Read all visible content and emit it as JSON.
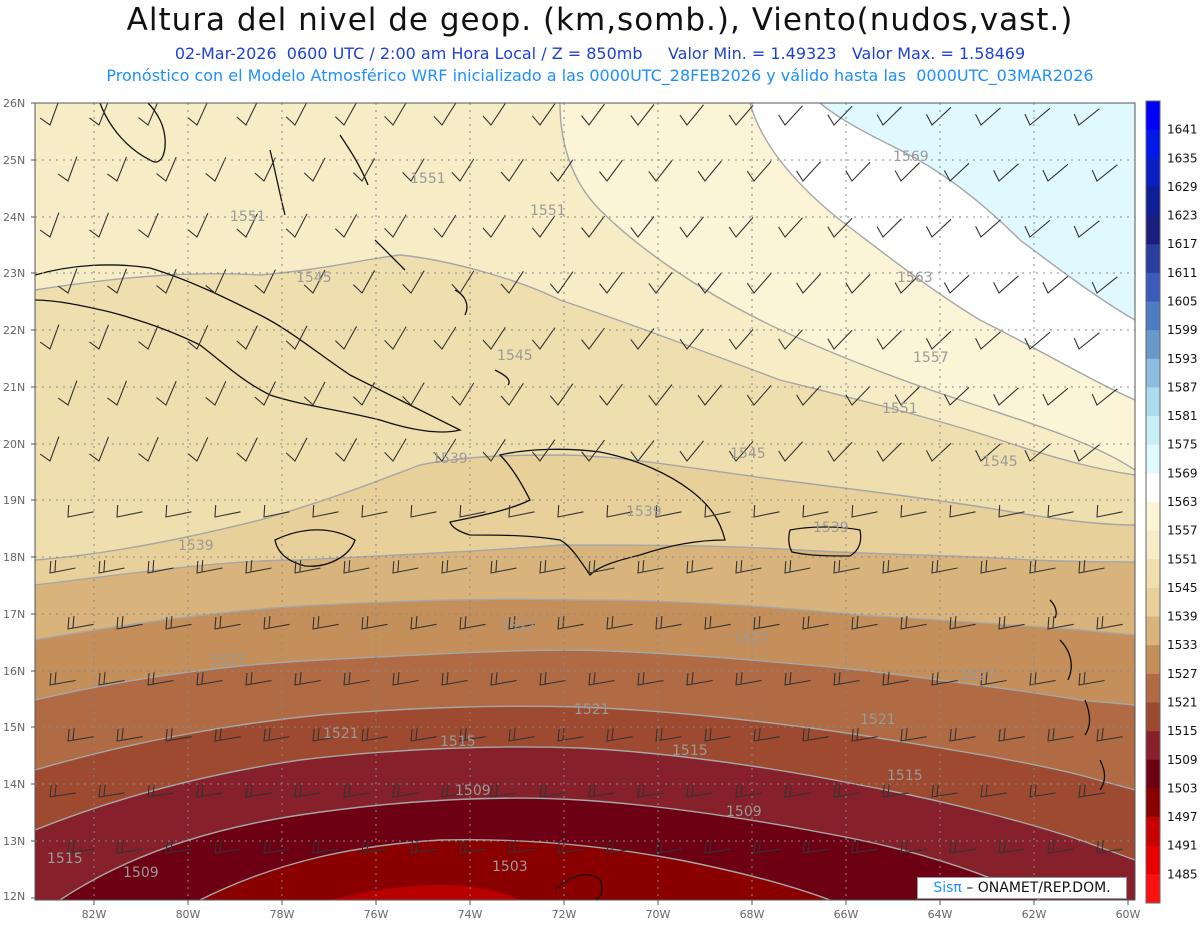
{
  "header": {
    "title": "Altura del nivel de geop. (km,somb.), Viento(nudos,vast.)",
    "subtitle_main": "02-Mar-2026  0600 UTC / 2:00 am Hora Local / Z = 850mb",
    "value_min": "Valor Min. = 1.49323",
    "value_max": "Valor Max. = 1.58469",
    "forecast_info": "Pronóstico con el Modelo Atmosférico WRF inicializado a las 0000UTC_28FEB2026 y válido hasta las  0000UTC_03MAR2026"
  },
  "axes": {
    "lat_labels": [
      "26N",
      "25N",
      "24N",
      "23N",
      "22N",
      "21N",
      "20N",
      "19N",
      "18N",
      "17N",
      "16N",
      "15N",
      "14N",
      "13N",
      "12N"
    ],
    "lon_labels": [
      "82W",
      "80W",
      "78W",
      "76W",
      "74W",
      "72W",
      "70W",
      "68W",
      "66W",
      "64W",
      "62W",
      "60W"
    ]
  },
  "colorbar": {
    "levels": [
      "1641",
      "1635",
      "1629",
      "1623",
      "1617",
      "1611",
      "1605",
      "1599",
      "1593",
      "1587",
      "1581",
      "1575",
      "1569",
      "1563",
      "1557",
      "1551",
      "1545",
      "1539",
      "1533",
      "1527",
      "1521",
      "1515",
      "1509",
      "1503",
      "1497",
      "1491",
      "1485"
    ],
    "colors": [
      "#0000ff",
      "#0018e8",
      "#0a1ec4",
      "#101e96",
      "#1a1e7a",
      "#2a3e9e",
      "#3c5ab8",
      "#4c7cc4",
      "#6898cc",
      "#8cbce0",
      "#aadcee",
      "#c8eef8",
      "#e0f8ff",
      "#ffffff",
      "#fbf4d6",
      "#f6ecc6",
      "#efdfae",
      "#e8d09a",
      "#d8b47c",
      "#c48f5a",
      "#b06a44",
      "#9e4a30",
      "#86202a",
      "#6e0014",
      "#8a0000",
      "#c80000",
      "#e80000",
      "#ff1010"
    ]
  },
  "contour_labels": [
    "1569",
    "1563",
    "1557",
    "1551",
    "1545",
    "1539",
    "1533",
    "1527",
    "1521",
    "1515",
    "1509",
    "1503"
  ],
  "credit": {
    "brand": "Sisπ",
    "org": "– ONAMET/REP.DOM."
  }
}
